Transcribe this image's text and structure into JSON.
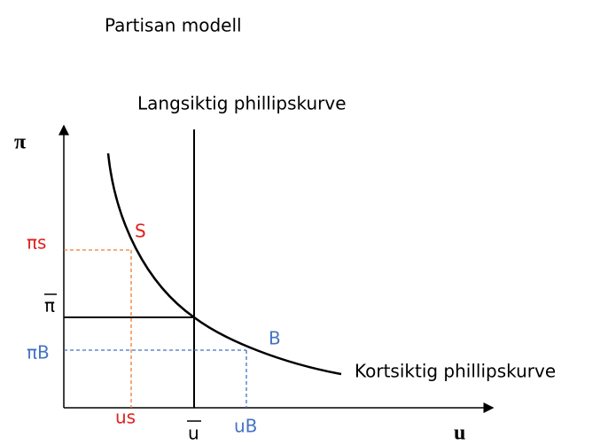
{
  "title": "Partisan modell",
  "long_run_label": "Langsiktig phillipskurve",
  "short_run_label": "Kortsiktig phillipskurve",
  "axes": {
    "y": "π",
    "x": "u"
  },
  "points": {
    "s": "S",
    "b": "B"
  },
  "y_ticks": {
    "pi_s": "πs",
    "pi_bar": "π",
    "pi_b": "πB"
  },
  "x_ticks": {
    "u_s": "us",
    "u_bar": "u",
    "u_b": "uB"
  }
}
